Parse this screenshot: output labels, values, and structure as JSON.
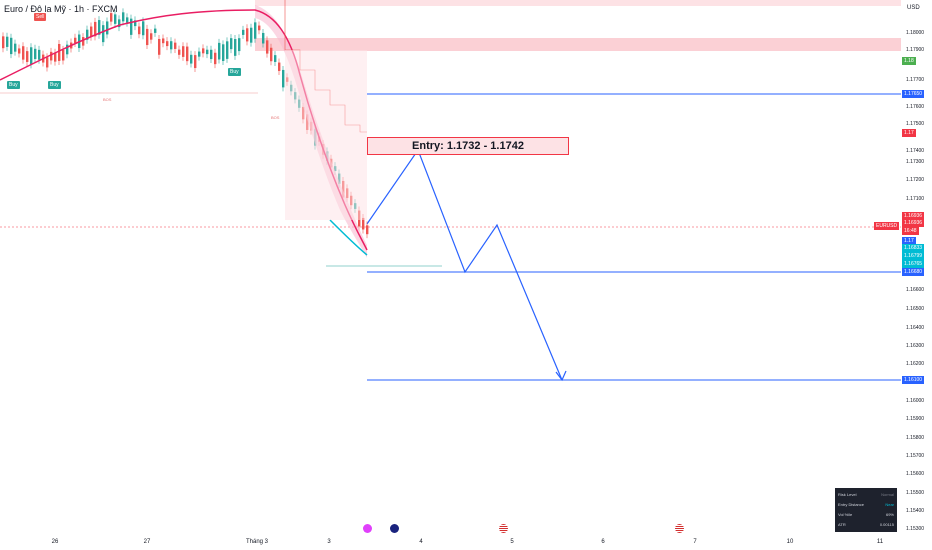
{
  "header": {
    "title": "Euro / Đô la Mỹ · 1h · FXCM",
    "currency": "USD"
  },
  "entry": {
    "label": "Entry: 1.1732 - 1.1742"
  },
  "symbol_tag": "EURUSD",
  "price_axis": {
    "labels": [
      "1.18000",
      "1.17900",
      "1.17700",
      "1.17600",
      "1.17500",
      "1.17400",
      "1.17300",
      "1.17200",
      "1.17100",
      "1.17000",
      "1.16600",
      "1.16500",
      "1.16400",
      "1.16300",
      "1.16200",
      "1.16000",
      "1.15900",
      "1.15800",
      "1.15700",
      "1.15600",
      "1.15500",
      "1.15400",
      "1.15300"
    ],
    "tags": [
      {
        "text": "1.18",
        "color": "#4caf50"
      },
      {
        "text": "1.17650",
        "color": "#2962ff"
      },
      {
        "text": "1.17",
        "color": "#f23645"
      },
      {
        "text": "1.16936",
        "color": "#f23645"
      },
      {
        "text": "1.16936",
        "color": "#f23645"
      },
      {
        "text": "16:48",
        "color": "#f23645"
      },
      {
        "text": "1.17",
        "color": "#2962ff"
      },
      {
        "text": "1.16833",
        "color": "#00bcd4"
      },
      {
        "text": "1.16799",
        "color": "#00bcd4"
      },
      {
        "text": "1.16765",
        "color": "#00bcd4"
      },
      {
        "text": "1.16680",
        "color": "#2962ff"
      },
      {
        "text": "1.16100",
        "color": "#2962ff"
      }
    ]
  },
  "time_axis": [
    "26",
    "27",
    "Tháng 3",
    "3",
    "4",
    "5",
    "6",
    "7",
    "10",
    "11"
  ],
  "badges": {
    "sell": "Sell",
    "buy1": "Buy",
    "buy2": "Buy",
    "buy3": "Buy",
    "bos1": "BOS",
    "bos2": "BOS"
  },
  "stats": [
    {
      "label": "Risk Level",
      "value": "Normal"
    },
    {
      "label": "Entry Distance",
      "value": "Near"
    },
    {
      "label": "Vol %ile",
      "value": "69%"
    },
    {
      "label": "ATR",
      "value": "0.00115"
    }
  ],
  "colors": {
    "bull": "#26a69a",
    "bear": "#ef5350",
    "level": "#2962ff",
    "supply": "#f8d7da"
  },
  "icons": [
    "bolt-event-icon",
    "globe-event-icon",
    "us-flag-event-icon",
    "us-flag-event-icon-2"
  ]
}
